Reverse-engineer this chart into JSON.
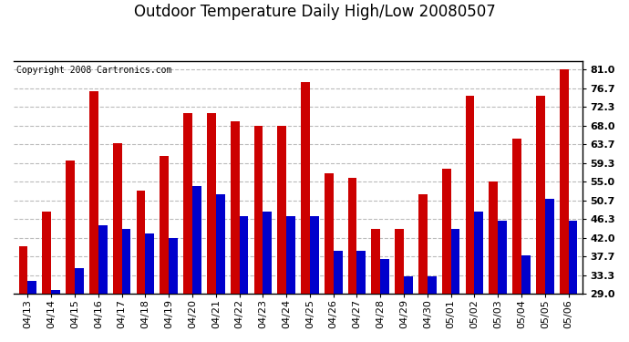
{
  "title": "Outdoor Temperature Daily High/Low 20080507",
  "copyright": "Copyright 2008 Cartronics.com",
  "dates": [
    "04/13",
    "04/14",
    "04/15",
    "04/16",
    "04/17",
    "04/18",
    "04/19",
    "04/20",
    "04/21",
    "04/22",
    "04/23",
    "04/24",
    "04/25",
    "04/26",
    "04/27",
    "04/28",
    "04/29",
    "04/30",
    "05/01",
    "05/02",
    "05/03",
    "05/04",
    "05/05",
    "05/06"
  ],
  "highs": [
    40,
    48,
    60,
    76,
    64,
    53,
    61,
    71,
    71,
    69,
    68,
    68,
    78,
    57,
    56,
    44,
    44,
    52,
    58,
    75,
    55,
    65,
    75,
    81
  ],
  "lows": [
    32,
    30,
    35,
    45,
    44,
    43,
    42,
    54,
    52,
    47,
    48,
    47,
    47,
    39,
    39,
    37,
    33,
    33,
    44,
    48,
    46,
    38,
    51,
    46
  ],
  "high_color": "#cc0000",
  "low_color": "#0000cc",
  "bg_color": "#ffffff",
  "grid_color": "#bbbbbb",
  "ymin": 29.0,
  "ymax": 83.0,
  "yticks": [
    29.0,
    33.3,
    37.7,
    42.0,
    46.3,
    50.7,
    55.0,
    59.3,
    63.7,
    68.0,
    72.3,
    76.7,
    81.0
  ],
  "bar_width": 0.38,
  "title_fontsize": 12,
  "tick_fontsize": 8,
  "copyright_fontsize": 7
}
